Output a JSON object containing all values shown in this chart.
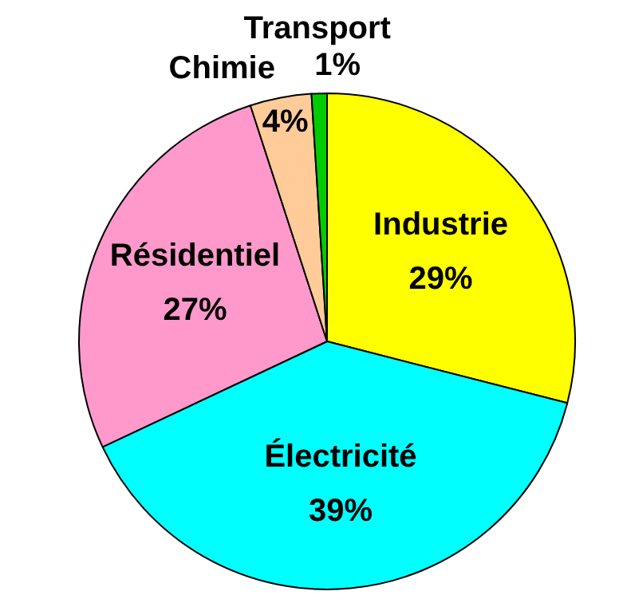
{
  "chart_data": {
    "type": "pie",
    "categories": [
      "Industrie",
      "Électricité",
      "Résidentiel",
      "Chimie",
      "Transport"
    ],
    "values": [
      29,
      39,
      27,
      4,
      1
    ],
    "value_labels": [
      "29%",
      "39%",
      "27%",
      "4%",
      "1%"
    ],
    "colors": [
      "#ffff00",
      "#00ffff",
      "#ff99cc",
      "#ffcc99",
      "#00cc00"
    ],
    "legend": false
  }
}
